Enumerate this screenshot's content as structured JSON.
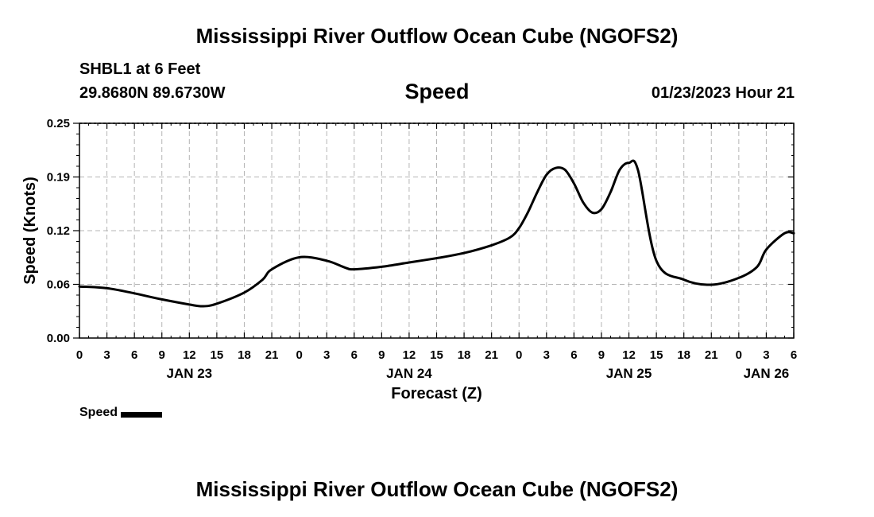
{
  "header": {
    "title": "Mississippi River Outflow Ocean Cube (NGOFS2)",
    "station": "SHBL1 at 6 Feet",
    "coords": "29.8680N  89.6730W",
    "variable": "Speed",
    "timestamp": "01/23/2023 Hour 21"
  },
  "footer": {
    "title": "Mississippi River Outflow Ocean Cube (NGOFS2)"
  },
  "chart_data": {
    "type": "line",
    "xlabel": "Forecast (Z)",
    "ylabel": "Speed (Knots)",
    "ylim": [
      0.0,
      0.25
    ],
    "yticks": [
      "0.00",
      "0.06",
      "0.12",
      "0.19",
      "0.25"
    ],
    "xlim_hours": [
      0,
      78
    ],
    "xticks": [
      "0",
      "3",
      "6",
      "9",
      "12",
      "15",
      "18",
      "21",
      "0",
      "3",
      "6",
      "9",
      "12",
      "15",
      "18",
      "21",
      "0",
      "3",
      "6",
      "9",
      "12",
      "15",
      "18",
      "21",
      "0",
      "3",
      "6"
    ],
    "date_labels": [
      {
        "label": "JAN 23",
        "hour": 12
      },
      {
        "label": "JAN 24",
        "hour": 36
      },
      {
        "label": "JAN 25",
        "hour": 60
      },
      {
        "label": "JAN 26",
        "hour": 75
      }
    ],
    "grid": true,
    "series": [
      {
        "name": "Speed",
        "color": "#000000",
        "x": [
          0,
          3,
          6,
          9,
          12,
          13.5,
          15,
          18,
          20,
          21,
          24,
          27,
          29,
          30,
          33,
          36,
          39,
          42,
          45,
          47,
          48,
          49,
          50,
          51,
          52,
          53,
          54,
          55,
          56,
          57,
          58,
          59,
          60,
          61,
          63,
          66,
          69,
          72,
          74,
          75,
          77,
          78
        ],
        "y": [
          0.06,
          0.058,
          0.052,
          0.045,
          0.039,
          0.037,
          0.04,
          0.053,
          0.068,
          0.08,
          0.094,
          0.09,
          0.082,
          0.08,
          0.083,
          0.088,
          0.093,
          0.099,
          0.108,
          0.117,
          0.128,
          0.147,
          0.17,
          0.19,
          0.198,
          0.196,
          0.18,
          0.158,
          0.146,
          0.15,
          0.17,
          0.196,
          0.204,
          0.195,
          0.09,
          0.068,
          0.062,
          0.07,
          0.083,
          0.103,
          0.122,
          0.122
        ]
      }
    ],
    "legend": {
      "label": "Speed",
      "position": "bottom-left"
    }
  }
}
